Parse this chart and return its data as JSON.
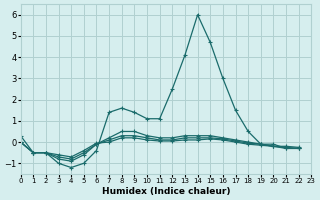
{
  "xlabel": "Humidex (Indice chaleur)",
  "xlim": [
    0,
    23
  ],
  "ylim": [
    -1.5,
    6.5
  ],
  "yticks": [
    -1,
    0,
    1,
    2,
    3,
    4,
    5,
    6
  ],
  "xticks": [
    0,
    1,
    2,
    3,
    4,
    5,
    6,
    7,
    8,
    9,
    10,
    11,
    12,
    13,
    14,
    15,
    16,
    17,
    18,
    19,
    20,
    21,
    22,
    23
  ],
  "bg_color": "#d6eeee",
  "grid_color": "#b0d0d0",
  "line_color": "#1a6b6b",
  "lines": [
    [
      0.3,
      -0.5,
      -0.5,
      -1.0,
      -1.2,
      -1.0,
      -0.4,
      1.4,
      1.6,
      1.4,
      1.1,
      1.1,
      2.5,
      4.1,
      6.0,
      4.7,
      3.0,
      1.5,
      0.5,
      -0.1,
      -0.1,
      -0.3,
      -0.3
    ],
    [
      0.0,
      -0.5,
      -0.5,
      -0.8,
      -0.9,
      -0.6,
      -0.1,
      0.2,
      0.5,
      0.5,
      0.3,
      0.2,
      0.2,
      0.3,
      0.3,
      0.3,
      0.2,
      0.1,
      0.0,
      -0.1,
      -0.2,
      -0.3,
      -0.3
    ],
    [
      0.0,
      -0.5,
      -0.5,
      -0.7,
      -0.8,
      -0.5,
      -0.1,
      0.1,
      0.3,
      0.3,
      0.2,
      0.1,
      0.1,
      0.2,
      0.2,
      0.2,
      0.15,
      0.05,
      -0.05,
      -0.1,
      -0.2,
      -0.25,
      -0.3
    ],
    [
      0.0,
      -0.5,
      -0.5,
      -0.6,
      -0.7,
      -0.4,
      -0.05,
      0.0,
      0.2,
      0.2,
      0.1,
      0.05,
      0.05,
      0.1,
      0.1,
      0.15,
      0.1,
      0.0,
      -0.1,
      -0.15,
      -0.2,
      -0.2,
      -0.25
    ]
  ],
  "x_values": [
    0,
    1,
    2,
    3,
    4,
    5,
    6,
    7,
    8,
    9,
    10,
    11,
    12,
    13,
    14,
    15,
    16,
    17,
    18,
    19,
    20,
    21,
    22
  ]
}
